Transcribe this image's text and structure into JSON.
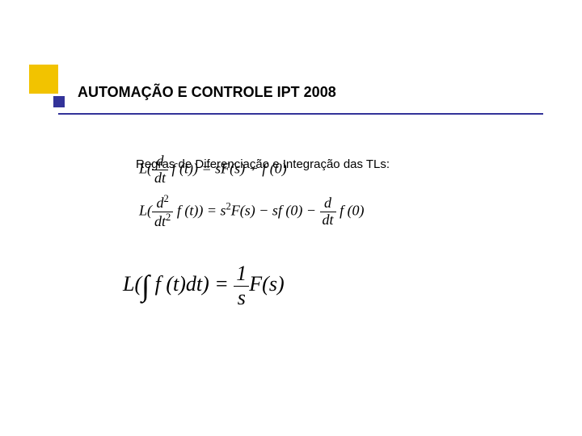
{
  "slide": {
    "title": "AUTOMAÇÃO E CONTROLE IPT 2008",
    "subtitle": "Regras de Diferenciação e Integração das TLs:",
    "accent_square_color": "#f2c300",
    "small_square_color": "#333399",
    "underline_color": "#333399",
    "background_color": "#ffffff",
    "title_fontsize": 18,
    "subtitle_fontsize": 15,
    "equations": {
      "eq1": {
        "lhs_prefix": "L(",
        "frac_num": "d",
        "frac_den": "dt",
        "lhs_func": " f (t)) = sF(s) − f (0)"
      },
      "eq2": {
        "lhs_prefix": "L(",
        "frac1_num": "d",
        "frac1_den": "dt",
        "sup1": "2",
        "sup1b": "2",
        "mid": " f (t)) = s",
        "sup2": "2",
        "mid2": "F(s) − sf (0) − ",
        "frac2_num": "d",
        "frac2_den": "dt",
        "tail": " f (0)"
      },
      "eq3": {
        "lhs_prefix": "L(",
        "integral": "∫",
        "lhs_func": " f (t)dt) = ",
        "frac_num": "1",
        "frac_den": "s",
        "tail": "F(s)"
      }
    }
  }
}
